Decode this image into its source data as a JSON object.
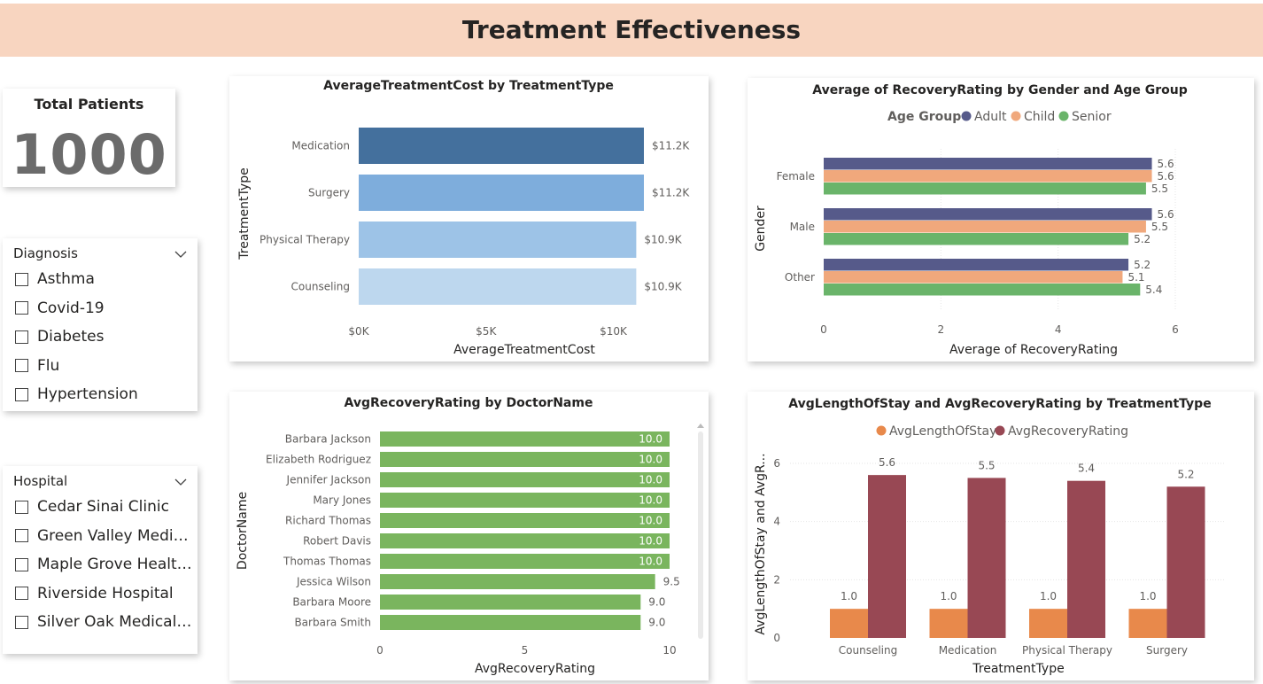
{
  "header": {
    "title": "Treatment Effectiveness"
  },
  "kpi": {
    "title": "Total Patients",
    "value": "1000"
  },
  "diagnosis_slicer": {
    "title": "Diagnosis",
    "items": [
      "Asthma",
      "Covid-19",
      "Diabetes",
      "Flu",
      "Hypertension"
    ]
  },
  "hospital_slicer": {
    "title": "Hospital",
    "items": [
      "Cedar Sinai Clinic",
      "Green Valley Medica...",
      "Maple Grove Health...",
      "Riverside Hospital",
      "Silver Oak Medical P..."
    ]
  },
  "chart_data": [
    {
      "id": "cost",
      "type": "bar",
      "orientation": "horizontal",
      "title": "AverageTreatmentCost by TreatmentType",
      "xlabel": "AverageTreatmentCost",
      "ylabel": "TreatmentType",
      "categories": [
        "Medication",
        "Surgery",
        "Physical Therapy",
        "Counseling"
      ],
      "values": [
        11200,
        11200,
        10900,
        10900
      ],
      "data_labels": [
        "$11.2K",
        "$11.2K",
        "$10.9K",
        "$10.9K"
      ],
      "colors": [
        "#44709d",
        "#7eaddc",
        "#9dc3e7",
        "#bdd7ee"
      ],
      "xlim": [
        0,
        11200
      ],
      "xticks": [
        0,
        5000,
        10000
      ],
      "xtick_labels": [
        "$0K",
        "$5K",
        "$10K"
      ]
    },
    {
      "id": "recovery_gender",
      "type": "bar",
      "orientation": "horizontal",
      "title": "Average of RecoveryRating by Gender and Age Group",
      "xlabel": "Average of RecoveryRating",
      "ylabel": "Gender",
      "legend_title": "Age Group",
      "legend_position": "top",
      "categories": [
        "Female",
        "Male",
        "Other"
      ],
      "series": [
        {
          "name": "Adult",
          "color": "#565a8a",
          "values": [
            5.6,
            5.6,
            5.2
          ]
        },
        {
          "name": "Child",
          "color": "#f0a87c",
          "values": [
            5.6,
            5.5,
            5.1
          ]
        },
        {
          "name": "Senior",
          "color": "#6ab46a",
          "values": [
            5.5,
            5.2,
            5.4
          ]
        }
      ],
      "xlim": [
        0,
        6
      ],
      "xticks": [
        0,
        2,
        4,
        6
      ],
      "grid": true
    },
    {
      "id": "doctor",
      "type": "bar",
      "orientation": "horizontal",
      "title": "AvgRecoveryRating by DoctorName",
      "xlabel": "AvgRecoveryRating",
      "ylabel": "DoctorName",
      "categories": [
        "Barbara Jackson",
        "Elizabeth Rodriguez",
        "Jennifer Jackson",
        "Mary Jones",
        "Richard Thomas",
        "Robert Davis",
        "Thomas Thomas",
        "Jessica Wilson",
        "Barbara Moore",
        "Barbara Smith"
      ],
      "values": [
        10.0,
        10.0,
        10.0,
        10.0,
        10.0,
        10.0,
        10.0,
        9.5,
        9.0,
        9.0
      ],
      "data_labels": [
        "10.0",
        "10.0",
        "10.0",
        "10.0",
        "10.0",
        "10.0",
        "10.0",
        "9.5",
        "9.0",
        "9.0"
      ],
      "color": "#7ab55e",
      "xlim": [
        0,
        10
      ],
      "xticks": [
        0,
        5,
        10
      ]
    },
    {
      "id": "stay",
      "type": "bar",
      "orientation": "vertical",
      "title": "AvgLengthOfStay and AvgRecoveryRating by TreatmentType",
      "xlabel": "TreatmentType",
      "ylabel": "AvgLengthOfStay and AvgR...",
      "legend_position": "top",
      "categories": [
        "Counseling",
        "Medication",
        "Physical Therapy",
        "Surgery"
      ],
      "series": [
        {
          "name": "AvgLengthOfStay",
          "color": "#e8894b",
          "values": [
            1.0,
            1.0,
            1.0,
            1.0
          ],
          "labels": [
            "1.0",
            "1.0",
            "1.0",
            "1.0"
          ]
        },
        {
          "name": "AvgRecoveryRating",
          "color": "#984854",
          "values": [
            5.6,
            5.5,
            5.4,
            5.2
          ],
          "labels": [
            "5.6",
            "5.5",
            "5.4",
            "5.2"
          ]
        }
      ],
      "ylim": [
        0,
        6
      ],
      "yticks": [
        0,
        2,
        4,
        6
      ],
      "grid": true
    }
  ]
}
